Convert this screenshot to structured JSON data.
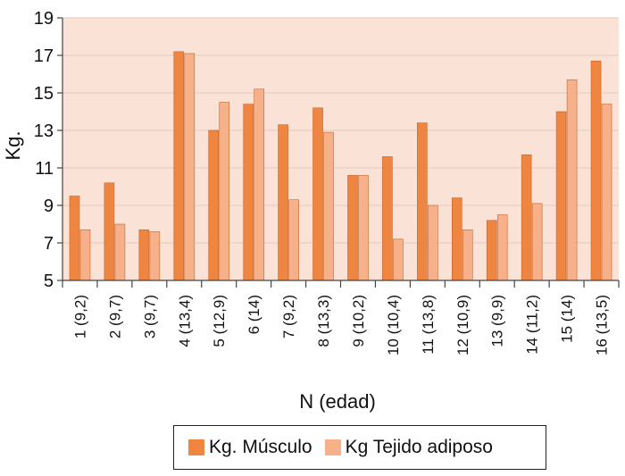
{
  "chart_data": {
    "type": "bar",
    "title": "",
    "xlabel": "N (edad)",
    "ylabel": "Kg.",
    "ylim": [
      5,
      19
    ],
    "yticks": [
      5,
      7,
      9,
      11,
      13,
      15,
      17,
      19
    ],
    "grid": true,
    "legend_position": "bottom",
    "categories": [
      "1 (9,2)",
      "2 (9,7)",
      "3 (9,7)",
      "4 (13,4)",
      "5 (12,9)",
      "6 (14)",
      "7 (9,2)",
      "8 (13,3)",
      "9 (10,2)",
      "10 (10,4)",
      "11 (13,8)",
      "12 (10,9)",
      "13 (9,9)",
      "14 (11,2)",
      "15 (14)",
      "16 (13,5)"
    ],
    "series": [
      {
        "name": "Kg. Músculo",
        "color": "#ee8540",
        "values": [
          9.5,
          10.2,
          7.7,
          17.2,
          13.0,
          14.4,
          13.3,
          14.2,
          10.6,
          11.6,
          13.4,
          9.4,
          8.2,
          11.7,
          14.0,
          16.7
        ]
      },
      {
        "name": "Kg Tejido adiposo",
        "color": "#f6b08a",
        "values": [
          7.7,
          8.0,
          7.6,
          17.1,
          14.5,
          15.2,
          9.3,
          12.9,
          10.6,
          7.2,
          9.0,
          7.7,
          8.5,
          9.1,
          15.7,
          14.4
        ]
      }
    ]
  },
  "colors": {
    "plot_background": "#fbe2d6",
    "gridline": "#e8cfc4",
    "musculo": "#ee8540",
    "adiposo": "#f6b08a"
  }
}
